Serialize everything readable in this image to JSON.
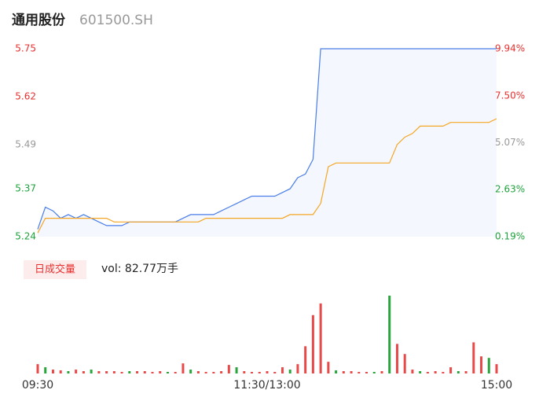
{
  "header": {
    "name": "通用股份",
    "code": "601500.SH"
  },
  "chart_data": [
    {
      "type": "line",
      "x": [
        0,
        4,
        8,
        12,
        16,
        20,
        24,
        28,
        32,
        36,
        40,
        44,
        48,
        52,
        56,
        60,
        64,
        68,
        72,
        76,
        80,
        84,
        88,
        92,
        96,
        100,
        104,
        108,
        112,
        116,
        120,
        124,
        128,
        132,
        136,
        140,
        144,
        148,
        152,
        156,
        160,
        164,
        168,
        172,
        176,
        180,
        184,
        188,
        192,
        196,
        200,
        204,
        208,
        212,
        216,
        220,
        224,
        228,
        232,
        236,
        240
      ],
      "xlim": [
        0,
        240
      ],
      "ylim": [
        5.24,
        5.75
      ],
      "yticks": [
        5.75,
        5.62,
        5.49,
        5.37,
        5.24
      ],
      "ytick_colors": [
        "#e8312f",
        "#e8312f",
        "#999999",
        "#1ea23c",
        "#1ea23c"
      ],
      "y2lim": [
        0.19,
        9.94
      ],
      "y2ticks": [
        {
          "value": 9.94,
          "label": "9.94%"
        },
        {
          "value": 7.5,
          "label": "7.50%"
        },
        {
          "value": 5.07,
          "label": "5.07%"
        },
        {
          "value": 2.63,
          "label": "2.63%"
        },
        {
          "value": 0.19,
          "label": "0.19%"
        }
      ],
      "area_color": "#f4f7fd",
      "series": [
        {
          "color": "#4a7ee8",
          "values": [
            5.26,
            5.32,
            5.31,
            5.29,
            5.3,
            5.29,
            5.3,
            5.29,
            5.28,
            5.27,
            5.27,
            5.27,
            5.28,
            5.28,
            5.28,
            5.28,
            5.28,
            5.28,
            5.28,
            5.29,
            5.3,
            5.3,
            5.3,
            5.3,
            5.31,
            5.32,
            5.33,
            5.34,
            5.35,
            5.35,
            5.35,
            5.35,
            5.36,
            5.37,
            5.4,
            5.41,
            5.45,
            5.75,
            5.75,
            5.75,
            5.75,
            5.75,
            5.75,
            5.75,
            5.75,
            5.75,
            5.75,
            5.75,
            5.75,
            5.75,
            5.75,
            5.75,
            5.75,
            5.75,
            5.75,
            5.75,
            5.75,
            5.75,
            5.75,
            5.75,
            5.75
          ]
        },
        {
          "color": "#f5a623",
          "values": [
            5.25,
            5.29,
            5.29,
            5.29,
            5.29,
            5.29,
            5.29,
            5.29,
            5.29,
            5.29,
            5.28,
            5.28,
            5.28,
            5.28,
            5.28,
            5.28,
            5.28,
            5.28,
            5.28,
            5.28,
            5.28,
            5.28,
            5.29,
            5.29,
            5.29,
            5.29,
            5.29,
            5.29,
            5.29,
            5.29,
            5.29,
            5.29,
            5.29,
            5.3,
            5.3,
            5.3,
            5.3,
            5.33,
            5.43,
            5.44,
            5.44,
            5.44,
            5.44,
            5.44,
            5.44,
            5.44,
            5.44,
            5.49,
            5.51,
            5.52,
            5.54,
            5.54,
            5.54,
            5.54,
            5.55,
            5.55,
            5.55,
            5.55,
            5.55,
            5.55,
            5.56
          ]
        }
      ]
    },
    {
      "type": "bar",
      "title": "日成交量",
      "annotation": "vol: 82.77万手",
      "x": [
        0,
        4,
        8,
        12,
        16,
        20,
        24,
        28,
        32,
        36,
        40,
        44,
        48,
        52,
        56,
        60,
        64,
        68,
        72,
        76,
        80,
        84,
        88,
        92,
        96,
        100,
        104,
        108,
        112,
        116,
        120,
        124,
        128,
        132,
        136,
        140,
        144,
        148,
        152,
        156,
        160,
        164,
        168,
        172,
        176,
        180,
        184,
        188,
        192,
        196,
        200,
        204,
        208,
        212,
        216,
        220,
        224,
        228,
        232,
        236,
        240
      ],
      "xlim": [
        0,
        240
      ],
      "ylim": [
        0,
        1
      ],
      "xticks": [
        {
          "value": 0,
          "label": "09:30"
        },
        {
          "value": 120,
          "label": "11:30/13:00"
        },
        {
          "value": 240,
          "label": "15:00"
        }
      ],
      "values": [
        0.12,
        0.08,
        0.05,
        0.04,
        0.03,
        0.05,
        0.03,
        0.05,
        0.03,
        0.03,
        0.03,
        0.02,
        0.03,
        0.03,
        0.03,
        0.02,
        0.03,
        0.02,
        0.02,
        0.13,
        0.05,
        0.03,
        0.02,
        0.02,
        0.03,
        0.11,
        0.08,
        0.03,
        0.02,
        0.02,
        0.03,
        0.02,
        0.08,
        0.05,
        0.12,
        0.35,
        0.75,
        0.9,
        0.15,
        0.04,
        0.03,
        0.03,
        0.02,
        0.02,
        0.02,
        0.03,
        1.0,
        0.38,
        0.25,
        0.05,
        0.03,
        0.02,
        0.03,
        0.02,
        0.08,
        0.03,
        0.03,
        0.4,
        0.22,
        0.2,
        0.12
      ],
      "colors": [
        "#e84a4a",
        "#2aa43c",
        "#e84a4a",
        "#e84a4a",
        "#2aa43c",
        "#e84a4a",
        "#e84a4a",
        "#2aa43c",
        "#e84a4a",
        "#e84a4a",
        "#e84a4a",
        "#e84a4a",
        "#2aa43c",
        "#e84a4a",
        "#e84a4a",
        "#e84a4a",
        "#e84a4a",
        "#2aa43c",
        "#e84a4a",
        "#e84a4a",
        "#2aa43c",
        "#e84a4a",
        "#e84a4a",
        "#e84a4a",
        "#e84a4a",
        "#e84a4a",
        "#2aa43c",
        "#e84a4a",
        "#e84a4a",
        "#e84a4a",
        "#e84a4a",
        "#e84a4a",
        "#e84a4a",
        "#2aa43c",
        "#e84a4a",
        "#e84a4a",
        "#e84a4a",
        "#e84a4a",
        "#e84a4a",
        "#2aa43c",
        "#e84a4a",
        "#e84a4a",
        "#e84a4a",
        "#e84a4a",
        "#2aa43c",
        "#e84a4a",
        "#2aa43c",
        "#e84a4a",
        "#e84a4a",
        "#e84a4a",
        "#2aa43c",
        "#e84a4a",
        "#e84a4a",
        "#e84a4a",
        "#e84a4a",
        "#2aa43c",
        "#e84a4a",
        "#e84a4a",
        "#e84a4a",
        "#2aa43c",
        "#e84a4a"
      ]
    }
  ]
}
